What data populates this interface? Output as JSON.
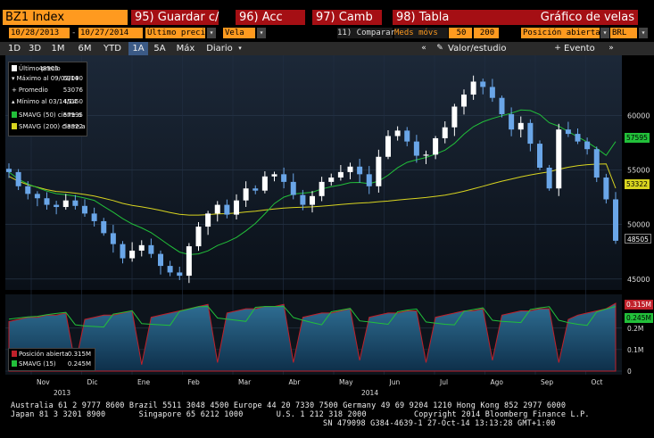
{
  "header": {
    "ticker": "BZ1 Index",
    "buttons": [
      "95) Guardar c/",
      "96) Acc",
      "97) Camb",
      "98) Tabla"
    ],
    "function_title": "Gráfico de velas"
  },
  "settings": {
    "start_date": "10/28/2013",
    "end_date": "10/27/2014",
    "price_field": "Último precio",
    "chart_type": "Vela",
    "compare": "11) Comparar",
    "meds_label": "Meds móvs",
    "ma1": "50",
    "ma2": "200",
    "lower_study": "Posición abierta",
    "currency": "BRL"
  },
  "toolbar": {
    "periods": [
      "1D",
      "3D",
      "1M",
      "6M",
      "YTD",
      "1A",
      "5A",
      "Máx"
    ],
    "active_period": "1A",
    "frequency": "Diario",
    "value_study": "Valor/estudio",
    "event": "Evento"
  },
  "legend": {
    "rows": [
      {
        "label": "Último precio",
        "value": "48505"
      },
      {
        "label": "Máximo al 09/03/14",
        "value": "63090"
      },
      {
        "label": "Promedio",
        "value": "53076"
      },
      {
        "label": "Mínimo al 03/14/14",
        "value": "45150"
      },
      {
        "label": "SMAVG (50) cierre a",
        "value": "57595"
      },
      {
        "label": "SMAVG (200) cierre a",
        "value": "53322"
      }
    ]
  },
  "lower_legend": {
    "rows": [
      {
        "label": "Posición abierta",
        "value": "0.315M"
      },
      {
        "label": "SMAVG (15)",
        "value": "0.245M"
      }
    ]
  },
  "price_axis": {
    "ticks": [
      "60000",
      "55000",
      "50000",
      "45000"
    ]
  },
  "price_tags": {
    "sma50": "57595",
    "sma200": "53322",
    "last": "48505"
  },
  "oi_axis": {
    "ticks": [
      "0.2M",
      "0.1M",
      "0"
    ]
  },
  "oi_tags": {
    "oi": "0.315M",
    "sma15": "0.245M"
  },
  "months": [
    "Nov",
    "Dic",
    "Ene",
    "Feb",
    "Mar",
    "Abr",
    "May",
    "Jun",
    "Jul",
    "Ago",
    "Sep",
    "Oct"
  ],
  "years": [
    "2013",
    "2014"
  ],
  "footer": {
    "line1": "Australia 61 2 9777 8600 Brazil 5511 3048 4500 Europe 44 20 7330 7500 Germany 49 69 9204 1210 Hong Kong 852 2977 6000",
    "line2": "Japan 81 3 3201 8900       Singapore 65 6212 1000       U.S. 1 212 318 2000          Copyright 2014 Bloomberg Finance L.P.",
    "line3": "SN 479098 G384-4639-1 27-Oct-14 13:13:28 GMT+1:00"
  },
  "colors": {
    "orange": "#ff9a1f",
    "red_button": "#a50f14",
    "up_candle": "#ffffff",
    "down_candle": "#6aa6e8",
    "sma50": "#22c03a",
    "sma200": "#d8d420",
    "oi_fill": "#1f5f8a",
    "oi_line": "#c0202a"
  },
  "chart_data": [
    {
      "type": "candlestick",
      "months": [
        "Nov",
        "Dic",
        "Ene",
        "Feb",
        "Mar",
        "Abr",
        "May",
        "Jun",
        "Jul",
        "Ago",
        "Sep",
        "Oct"
      ],
      "closes": [
        54800,
        53500,
        52800,
        52400,
        51800,
        51600,
        52200,
        51700,
        51000,
        50300,
        49200,
        48200,
        46900,
        47600,
        48100,
        47300,
        46200,
        45600,
        45300,
        48000,
        49800,
        51000,
        51800,
        50900,
        52200,
        53300,
        53100,
        54400,
        54600,
        53900,
        52700,
        51800,
        52600,
        53900,
        54300,
        54800,
        55300,
        54600,
        53500,
        56200,
        58100,
        58600,
        57600,
        56300,
        56400,
        57900,
        58900,
        60800,
        61900,
        63090,
        62600,
        61600,
        60100,
        58700,
        59300,
        57400,
        55200,
        53300,
        58700,
        58300,
        57600,
        56900,
        54300,
        52300,
        48505
      ],
      "y_axis_ticks": [
        45000,
        50000,
        55000,
        60000
      ],
      "sma50_last": 57595,
      "sma200_last": 53322,
      "high": {
        "date": "09/03/14",
        "value": 63090
      },
      "low": {
        "date": "03/14/14",
        "value": 45150
      },
      "average": 53076,
      "last": 48505
    },
    {
      "type": "area",
      "series": [
        {
          "name": "Posición abierta",
          "last": "0.315M"
        },
        {
          "name": "SMAVG (15)",
          "last": "0.245M"
        }
      ],
      "y_axis_ticks": [
        "0",
        "0.1M",
        "0.2M"
      ],
      "values_M": [
        0.23,
        0.24,
        0.25,
        0.25,
        0.26,
        0.26,
        0.27,
        0.03,
        0.24,
        0.25,
        0.26,
        0.26,
        0.27,
        0.28,
        0.03,
        0.25,
        0.26,
        0.27,
        0.28,
        0.29,
        0.3,
        0.31,
        0.04,
        0.27,
        0.28,
        0.29,
        0.29,
        0.3,
        0.3,
        0.31,
        0.04,
        0.25,
        0.26,
        0.27,
        0.27,
        0.28,
        0.29,
        0.05,
        0.25,
        0.26,
        0.27,
        0.27,
        0.28,
        0.28,
        0.04,
        0.25,
        0.26,
        0.27,
        0.28,
        0.28,
        0.29,
        0.05,
        0.26,
        0.27,
        0.28,
        0.28,
        0.29,
        0.29,
        0.04,
        0.24,
        0.26,
        0.27,
        0.28,
        0.29,
        0.315
      ]
    }
  ]
}
